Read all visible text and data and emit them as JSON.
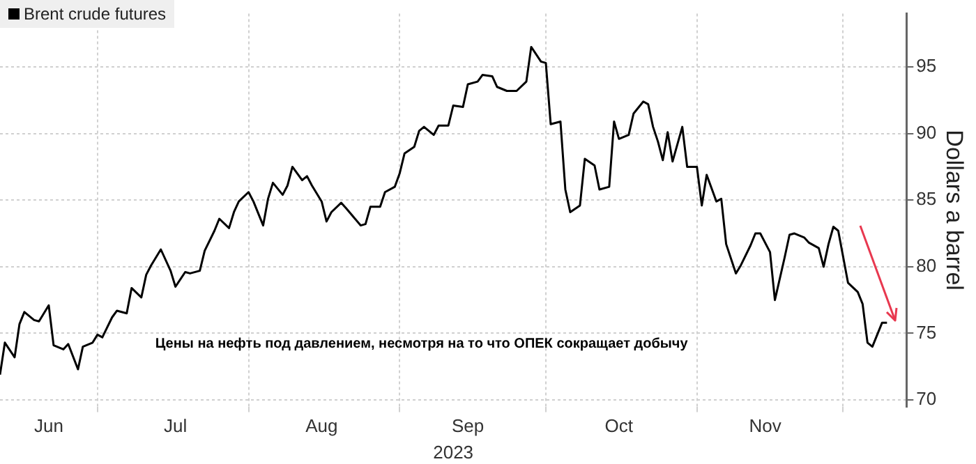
{
  "chart_data": {
    "type": "line",
    "xlabel": "2023",
    "ylabel": "Dollars a barrel",
    "annotations": [
      "Цены на нефть под давлением, несмотря на то что ОПЕК сокращает добычу"
    ],
    "legend": "top left",
    "grid": true,
    "marker": "none",
    "line_style": "solid",
    "xlim": [
      "2023-06-11",
      "2023-12-14"
    ],
    "xticks": [
      {
        "value": "2023-06-21",
        "label": "Jun"
      },
      {
        "value": "2023-07-01",
        "label": null
      },
      {
        "value": "2023-07-17",
        "label": "Jul"
      },
      {
        "value": "2023-08-01",
        "label": null
      },
      {
        "value": "2023-08-16",
        "label": "Aug"
      },
      {
        "value": "2023-09-01",
        "label": null
      },
      {
        "value": "2023-09-15",
        "label": "Sep"
      },
      {
        "value": "2023-10-01",
        "label": null
      },
      {
        "value": "2023-10-16",
        "label": "Oct"
      },
      {
        "value": "2023-11-01",
        "label": null
      },
      {
        "value": "2023-11-15",
        "label": "Nov"
      },
      {
        "value": "2023-12-01",
        "label": null
      }
    ],
    "ylim": [
      69.5,
      99
    ],
    "yticks": [
      70,
      75,
      80,
      85,
      90,
      95
    ],
    "series": [
      {
        "name": "Brent crude futures",
        "color": "#000000",
        "x": [
          "2023-06-11",
          "2023-06-12",
          "2023-06-14",
          "2023-06-15",
          "2023-06-16",
          "2023-06-18",
          "2023-06-19",
          "2023-06-21",
          "2023-06-22",
          "2023-06-24",
          "2023-06-25",
          "2023-06-27",
          "2023-06-28",
          "2023-06-30",
          "2023-07-01",
          "2023-07-02",
          "2023-07-04",
          "2023-07-05",
          "2023-07-07",
          "2023-07-08",
          "2023-07-10",
          "2023-07-11",
          "2023-07-12",
          "2023-07-14",
          "2023-07-16",
          "2023-07-17",
          "2023-07-19",
          "2023-07-20",
          "2023-07-22",
          "2023-07-23",
          "2023-07-25",
          "2023-07-26",
          "2023-07-28",
          "2023-07-29",
          "2023-07-30",
          "2023-08-01",
          "2023-08-02",
          "2023-08-04",
          "2023-08-05",
          "2023-08-06",
          "2023-08-08",
          "2023-08-09",
          "2023-08-10",
          "2023-08-12",
          "2023-08-13",
          "2023-08-14",
          "2023-08-16",
          "2023-08-17",
          "2023-08-18",
          "2023-08-20",
          "2023-08-21",
          "2023-08-24",
          "2023-08-25",
          "2023-08-26",
          "2023-08-28",
          "2023-08-29",
          "2023-08-31",
          "2023-09-01",
          "2023-09-02",
          "2023-09-04",
          "2023-09-05",
          "2023-09-06",
          "2023-09-08",
          "2023-09-09",
          "2023-09-11",
          "2023-09-12",
          "2023-09-14",
          "2023-09-15",
          "2023-09-17",
          "2023-09-18",
          "2023-09-20",
          "2023-09-21",
          "2023-09-23",
          "2023-09-25",
          "2023-09-27",
          "2023-09-28",
          "2023-09-30",
          "2023-10-01",
          "2023-10-02",
          "2023-10-04",
          "2023-10-05",
          "2023-10-06",
          "2023-10-08",
          "2023-10-09",
          "2023-10-11",
          "2023-10-12",
          "2023-10-14",
          "2023-10-15",
          "2023-10-16",
          "2023-10-18",
          "2023-10-19",
          "2023-10-21",
          "2023-10-22",
          "2023-10-23",
          "2023-10-24",
          "2023-10-25",
          "2023-10-26",
          "2023-10-27",
          "2023-10-29",
          "2023-10-30",
          "2023-11-01",
          "2023-11-02",
          "2023-11-03",
          "2023-11-05",
          "2023-11-06",
          "2023-11-07",
          "2023-11-09",
          "2023-11-10",
          "2023-11-12",
          "2023-11-13",
          "2023-11-14",
          "2023-11-16",
          "2023-11-17",
          "2023-11-19",
          "2023-11-20",
          "2023-11-21",
          "2023-11-23",
          "2023-11-24",
          "2023-11-26",
          "2023-11-27",
          "2023-11-28",
          "2023-11-29",
          "2023-11-30",
          "2023-12-02",
          "2023-12-04",
          "2023-12-05",
          "2023-12-06",
          "2023-12-07",
          "2023-12-09",
          "2023-12-10"
        ],
        "values": [
          71.9,
          74.3,
          73.2,
          75.7,
          76.6,
          76.0,
          75.9,
          77.1,
          74.1,
          73.8,
          74.2,
          72.3,
          74.0,
          74.3,
          74.9,
          74.7,
          76.2,
          76.7,
          76.5,
          78.4,
          77.7,
          79.4,
          80.1,
          81.3,
          79.7,
          78.5,
          79.6,
          79.5,
          79.7,
          81.2,
          82.7,
          83.6,
          82.9,
          84.1,
          84.9,
          85.6,
          84.9,
          83.1,
          85.1,
          86.3,
          85.4,
          86.1,
          87.5,
          86.5,
          86.8,
          86.1,
          84.9,
          83.4,
          84.1,
          84.8,
          84.4,
          83.1,
          83.2,
          84.5,
          84.5,
          85.6,
          86.0,
          87.0,
          88.5,
          89.0,
          90.2,
          90.5,
          89.9,
          90.6,
          90.6,
          92.1,
          92.0,
          93.7,
          93.9,
          94.4,
          94.3,
          93.5,
          93.2,
          93.2,
          93.9,
          96.5,
          95.4,
          95.3,
          90.7,
          90.9,
          85.8,
          84.1,
          84.6,
          88.1,
          87.6,
          85.8,
          86.0,
          90.9,
          89.6,
          89.9,
          91.5,
          92.4,
          92.2,
          90.5,
          89.4,
          88.0,
          90.1,
          87.9,
          90.5,
          87.5,
          87.5,
          84.6,
          86.9,
          84.9,
          85.1,
          81.7,
          79.5,
          80.1,
          81.6,
          82.5,
          82.5,
          81.1,
          77.5,
          80.7,
          82.4,
          82.5,
          82.2,
          81.8,
          81.4,
          80.0,
          81.7,
          83.0,
          82.7,
          78.8,
          78.1,
          77.2,
          74.3,
          74.0,
          75.8,
          75.8
        ]
      }
    ]
  }
}
